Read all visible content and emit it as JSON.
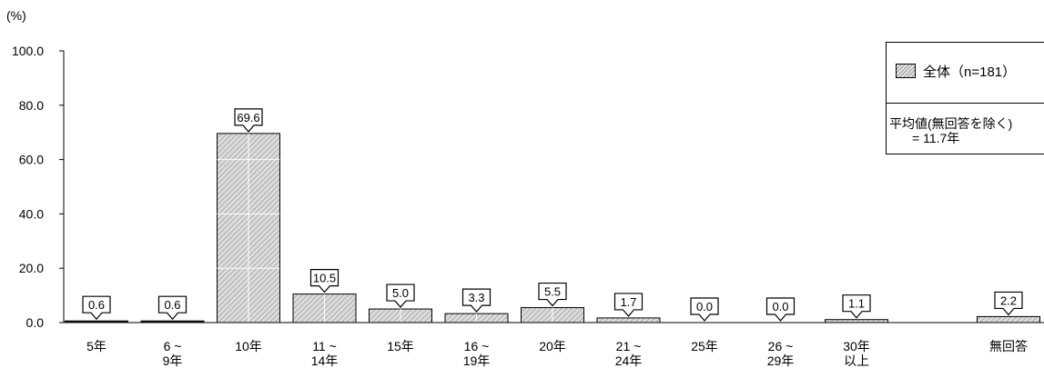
{
  "chart_data": {
    "type": "bar",
    "y_unit_label": "(%)",
    "ylim": [
      0,
      100
    ],
    "y_ticks": [
      "0.0",
      "20.0",
      "40.0",
      "60.0",
      "80.0",
      "100.0"
    ],
    "categories": [
      [
        "5年"
      ],
      [
        "6 ~",
        "9年"
      ],
      [
        "10年"
      ],
      [
        "11 ~",
        "14年"
      ],
      [
        "15年"
      ],
      [
        "16 ~",
        "19年"
      ],
      [
        "20年"
      ],
      [
        "21 ~",
        "24年"
      ],
      [
        "25年"
      ],
      [
        "26 ~",
        "29年"
      ],
      [
        "30年",
        "以上"
      ],
      [],
      [
        "無回答"
      ]
    ],
    "series": [
      {
        "name": "全体（n=181）",
        "values": [
          0.6,
          0.6,
          69.6,
          10.5,
          5.0,
          3.3,
          5.5,
          1.7,
          0.0,
          0.0,
          1.1,
          null,
          2.2
        ],
        "labels": [
          "0.6",
          "0.6",
          "69.6",
          "10.5",
          "5.0",
          "3.3",
          "5.5",
          "1.7",
          "0.0",
          "0.0",
          "1.1",
          "",
          "2.2"
        ]
      }
    ],
    "legend": {
      "placement": "top-right",
      "series_label": "全体（n=181）",
      "mean_line1": "平均値(無回答を除く)",
      "mean_line2": "= 11.7年"
    },
    "colors": {
      "bar_fill": "#d4d4d4",
      "bar_hatch": "#8c8c8c",
      "dark_bar": "#222222"
    }
  }
}
